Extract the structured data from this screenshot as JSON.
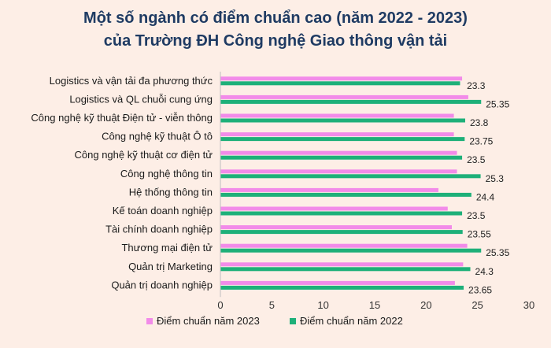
{
  "chart_data": {
    "type": "bar",
    "orientation": "horizontal",
    "title": "Một số ngành có điểm chuẩn cao (năm 2022 - 2023)",
    "subtitle": "của Trường ĐH Công nghệ Giao thông vận tải",
    "categories": [
      "Logistics và vận tải đa phương thức",
      "Logistics và QL chuỗi cung ứng",
      "Công nghệ kỹ thuật Điện tử - viễn thông",
      "Công nghệ kỹ thuật Ô tô",
      "Công nghệ kỹ thuật cơ điện tử",
      "Công nghệ thông tin",
      "Hệ thống thông tin",
      "Kế toán doanh nghiệp",
      "Tài chính doanh nghiệp",
      "Thương mại điện tử",
      "Quản trị Marketing",
      "Quản trị doanh nghiệp"
    ],
    "series": [
      {
        "name": "Điểm chuẩn năm 2023",
        "color": "#f28be9",
        "values": [
          23.5,
          24.1,
          22.7,
          22.7,
          23.0,
          23.0,
          21.2,
          22.1,
          22.5,
          24.0,
          23.6,
          22.8
        ]
      },
      {
        "name": "Điểm chuẩn năm 2022",
        "color": "#1eb079",
        "values": [
          23.3,
          25.35,
          23.8,
          23.75,
          23.5,
          25.3,
          24.4,
          23.5,
          23.55,
          25.35,
          24.3,
          23.65
        ]
      }
    ],
    "data_labels": [
      "23.3",
      "25.35",
      "23.8",
      "23.75",
      "23.5",
      "25.3",
      "24.4",
      "23.5",
      "23.55",
      "25.35",
      "24.3",
      "23.65"
    ],
    "xlim": [
      0,
      30
    ],
    "xticks": [
      "0",
      "5",
      "10",
      "15",
      "20",
      "25",
      "30"
    ],
    "grid": false,
    "legend_position": "bottom"
  }
}
